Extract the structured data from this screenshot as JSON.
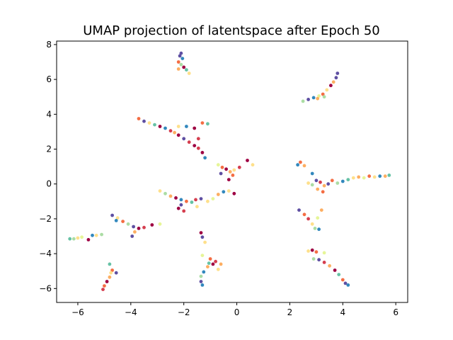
{
  "chart_data": {
    "type": "scatter",
    "title": "UMAP projection of latentspace after Epoch 50",
    "xlabel": "",
    "ylabel": "",
    "xlim": [
      -6.8,
      6.45
    ],
    "ylim": [
      -6.8,
      8.2
    ],
    "xticks": [
      -6,
      -4,
      -2,
      0,
      2,
      4,
      6
    ],
    "xtick_labels": [
      "−6",
      "−4",
      "−2",
      "0",
      "2",
      "4",
      "6"
    ],
    "yticks": [
      -6,
      -4,
      -2,
      0,
      2,
      4,
      6,
      8
    ],
    "ytick_labels": [
      "−6",
      "−4",
      "−2",
      "0",
      "2",
      "4",
      "6",
      "8"
    ],
    "grid": false,
    "legend": "none",
    "colormap": [
      "#9e0142",
      "#d53e4f",
      "#f46d43",
      "#fdae61",
      "#fee08b",
      "#e6f598",
      "#abdda4",
      "#66c2a5",
      "#3288bd",
      "#5e4fa2"
    ],
    "points": [
      {
        "x": -2.1,
        "y": 7.5,
        "c": 9
      },
      {
        "x": -2.15,
        "y": 7.35,
        "c": 9
      },
      {
        "x": -2.05,
        "y": 7.2,
        "c": 8
      },
      {
        "x": -2.2,
        "y": 7.0,
        "c": 2
      },
      {
        "x": -2.1,
        "y": 6.85,
        "c": 6
      },
      {
        "x": -2.0,
        "y": 6.7,
        "c": 0
      },
      {
        "x": -1.9,
        "y": 6.55,
        "c": 7
      },
      {
        "x": -1.8,
        "y": 6.35,
        "c": 4
      },
      {
        "x": -2.2,
        "y": 6.6,
        "c": 3
      },
      {
        "x": 2.5,
        "y": 4.75,
        "c": 6
      },
      {
        "x": 2.7,
        "y": 4.85,
        "c": 9
      },
      {
        "x": 2.9,
        "y": 4.95,
        "c": 8
      },
      {
        "x": 3.1,
        "y": 5.05,
        "c": 5
      },
      {
        "x": 3.25,
        "y": 5.15,
        "c": 2
      },
      {
        "x": 3.4,
        "y": 5.4,
        "c": 4
      },
      {
        "x": 3.55,
        "y": 5.65,
        "c": 0
      },
      {
        "x": 3.65,
        "y": 5.85,
        "c": 3
      },
      {
        "x": 3.75,
        "y": 6.1,
        "c": 9
      },
      {
        "x": 3.8,
        "y": 6.35,
        "c": 9
      },
      {
        "x": 3.3,
        "y": 5.0,
        "c": 6
      },
      {
        "x": 3.05,
        "y": 4.9,
        "c": 3
      },
      {
        "x": -3.7,
        "y": 3.75,
        "c": 2
      },
      {
        "x": -3.5,
        "y": 3.6,
        "c": 9
      },
      {
        "x": -3.3,
        "y": 3.5,
        "c": 4
      },
      {
        "x": -3.1,
        "y": 3.4,
        "c": 7
      },
      {
        "x": -2.9,
        "y": 3.3,
        "c": 0
      },
      {
        "x": -2.7,
        "y": 3.2,
        "c": 8
      },
      {
        "x": -2.5,
        "y": 3.05,
        "c": 1
      },
      {
        "x": -2.35,
        "y": 2.95,
        "c": 3
      },
      {
        "x": -2.2,
        "y": 2.8,
        "c": 0
      },
      {
        "x": -2.0,
        "y": 2.6,
        "c": 9
      },
      {
        "x": -1.8,
        "y": 2.4,
        "c": 1
      },
      {
        "x": -1.6,
        "y": 2.2,
        "c": 0
      },
      {
        "x": -1.45,
        "y": 2.05,
        "c": 1
      },
      {
        "x": -1.3,
        "y": 1.8,
        "c": 0
      },
      {
        "x": -1.2,
        "y": 1.5,
        "c": 8
      },
      {
        "x": -2.2,
        "y": 3.3,
        "c": 4
      },
      {
        "x": -1.9,
        "y": 3.3,
        "c": 8
      },
      {
        "x": -1.6,
        "y": 3.2,
        "c": 0
      },
      {
        "x": -1.3,
        "y": 3.5,
        "c": 2
      },
      {
        "x": -1.1,
        "y": 3.45,
        "c": 7
      },
      {
        "x": -1.45,
        "y": 2.6,
        "c": 1
      },
      {
        "x": -0.7,
        "y": 1.1,
        "c": 5
      },
      {
        "x": -0.55,
        "y": 0.95,
        "c": 2
      },
      {
        "x": -0.4,
        "y": 0.85,
        "c": 0
      },
      {
        "x": -0.25,
        "y": 0.7,
        "c": 3
      },
      {
        "x": -0.1,
        "y": 0.8,
        "c": 4
      },
      {
        "x": 0.1,
        "y": 0.95,
        "c": 1
      },
      {
        "x": 0.4,
        "y": 1.35,
        "c": 0
      },
      {
        "x": 0.6,
        "y": 1.1,
        "c": 4
      },
      {
        "x": -0.6,
        "y": 0.6,
        "c": 9
      },
      {
        "x": -0.3,
        "y": 0.25,
        "c": 0
      },
      {
        "x": -0.15,
        "y": 0.5,
        "c": 2
      },
      {
        "x": -2.9,
        "y": -0.4,
        "c": 4
      },
      {
        "x": -2.7,
        "y": -0.55,
        "c": 6
      },
      {
        "x": -2.5,
        "y": -0.7,
        "c": 3
      },
      {
        "x": -2.3,
        "y": -0.8,
        "c": 0
      },
      {
        "x": -2.1,
        "y": -0.9,
        "c": 8
      },
      {
        "x": -1.9,
        "y": -1.0,
        "c": 2
      },
      {
        "x": -1.7,
        "y": -1.05,
        "c": 7
      },
      {
        "x": -1.55,
        "y": -0.9,
        "c": 1
      },
      {
        "x": -1.35,
        "y": -0.85,
        "c": 9
      },
      {
        "x": -1.1,
        "y": -1.0,
        "c": 4
      },
      {
        "x": -0.9,
        "y": -0.85,
        "c": 5
      },
      {
        "x": -0.7,
        "y": -0.6,
        "c": 3
      },
      {
        "x": -0.5,
        "y": -0.45,
        "c": 8
      },
      {
        "x": -0.3,
        "y": -0.4,
        "c": 4
      },
      {
        "x": -0.1,
        "y": -0.55,
        "c": 0
      },
      {
        "x": -2.2,
        "y": -1.4,
        "c": 0
      },
      {
        "x": -2.0,
        "y": -1.55,
        "c": 1
      },
      {
        "x": -2.1,
        "y": -1.2,
        "c": 9
      },
      {
        "x": -1.5,
        "y": -1.3,
        "c": 4
      },
      {
        "x": -4.7,
        "y": -1.8,
        "c": 9
      },
      {
        "x": -4.5,
        "y": -1.95,
        "c": 4
      },
      {
        "x": -4.3,
        "y": -2.15,
        "c": 2
      },
      {
        "x": -4.1,
        "y": -2.3,
        "c": 6
      },
      {
        "x": -3.9,
        "y": -2.45,
        "c": 9
      },
      {
        "x": -3.7,
        "y": -2.55,
        "c": 0
      },
      {
        "x": -3.5,
        "y": -2.5,
        "c": 1
      },
      {
        "x": -3.2,
        "y": -2.35,
        "c": 0
      },
      {
        "x": -2.9,
        "y": -2.3,
        "c": 5
      },
      {
        "x": -3.95,
        "y": -3.0,
        "c": 9
      },
      {
        "x": -3.85,
        "y": -2.75,
        "c": 3
      },
      {
        "x": -4.55,
        "y": -2.1,
        "c": 8
      },
      {
        "x": -6.3,
        "y": -3.15,
        "c": 7
      },
      {
        "x": -6.15,
        "y": -3.15,
        "c": 6
      },
      {
        "x": -6.0,
        "y": -3.1,
        "c": 4
      },
      {
        "x": -5.85,
        "y": -3.05,
        "c": 5
      },
      {
        "x": -5.6,
        "y": -3.2,
        "c": 0
      },
      {
        "x": -5.45,
        "y": -2.95,
        "c": 8
      },
      {
        "x": -5.3,
        "y": -2.95,
        "c": 4
      },
      {
        "x": -5.1,
        "y": -2.9,
        "c": 6
      },
      {
        "x": -4.8,
        "y": -4.6,
        "c": 7
      },
      {
        "x": -4.7,
        "y": -4.95,
        "c": 2
      },
      {
        "x": -4.55,
        "y": -5.1,
        "c": 9
      },
      {
        "x": -4.8,
        "y": -5.35,
        "c": 3
      },
      {
        "x": -4.9,
        "y": -5.6,
        "c": 0
      },
      {
        "x": -5.0,
        "y": -5.85,
        "c": 2
      },
      {
        "x": -5.05,
        "y": -6.05,
        "c": 1
      },
      {
        "x": -4.75,
        "y": -5.1,
        "c": 4
      },
      {
        "x": -1.35,
        "y": -2.8,
        "c": 0
      },
      {
        "x": -1.3,
        "y": -3.05,
        "c": 9
      },
      {
        "x": -1.2,
        "y": -3.35,
        "c": 4
      },
      {
        "x": -1.3,
        "y": -4.1,
        "c": 5
      },
      {
        "x": -1.0,
        "y": -4.3,
        "c": 2
      },
      {
        "x": -0.8,
        "y": -4.45,
        "c": 1
      },
      {
        "x": -0.6,
        "y": -4.6,
        "c": 3
      },
      {
        "x": -0.7,
        "y": -4.9,
        "c": 4
      },
      {
        "x": -0.9,
        "y": -4.6,
        "c": 0
      },
      {
        "x": -1.1,
        "y": -4.75,
        "c": 3
      },
      {
        "x": -1.25,
        "y": -5.05,
        "c": 8
      },
      {
        "x": -1.35,
        "y": -5.3,
        "c": 6
      },
      {
        "x": -1.35,
        "y": -5.6,
        "c": 9
      },
      {
        "x": -1.3,
        "y": -5.8,
        "c": 8
      },
      {
        "x": -1.05,
        "y": -4.55,
        "c": 7
      },
      {
        "x": 2.4,
        "y": 1.25,
        "c": 2
      },
      {
        "x": 2.3,
        "y": 1.1,
        "c": 8
      },
      {
        "x": 2.55,
        "y": 1.05,
        "c": 3
      },
      {
        "x": 2.7,
        "y": 0.05,
        "c": 4
      },
      {
        "x": 2.85,
        "y": -0.05,
        "c": 6
      },
      {
        "x": 3.0,
        "y": 0.2,
        "c": 9
      },
      {
        "x": 3.15,
        "y": 0.1,
        "c": 1
      },
      {
        "x": 3.3,
        "y": -0.1,
        "c": 3
      },
      {
        "x": 3.45,
        "y": 0.0,
        "c": 9
      },
      {
        "x": 3.6,
        "y": 0.2,
        "c": 2
      },
      {
        "x": 3.8,
        "y": 0.05,
        "c": 6
      },
      {
        "x": 4.0,
        "y": 0.15,
        "c": 8
      },
      {
        "x": 4.2,
        "y": 0.25,
        "c": 7
      },
      {
        "x": 4.4,
        "y": 0.35,
        "c": 4
      },
      {
        "x": 4.6,
        "y": 0.4,
        "c": 3
      },
      {
        "x": 4.8,
        "y": 0.35,
        "c": 5
      },
      {
        "x": 5.0,
        "y": 0.45,
        "c": 2
      },
      {
        "x": 5.2,
        "y": 0.4,
        "c": 4
      },
      {
        "x": 5.4,
        "y": 0.45,
        "c": 8
      },
      {
        "x": 5.6,
        "y": 0.45,
        "c": 3
      },
      {
        "x": 5.75,
        "y": 0.5,
        "c": 7
      },
      {
        "x": 3.25,
        "y": -0.45,
        "c": 2
      },
      {
        "x": 3.05,
        "y": -0.3,
        "c": 3
      },
      {
        "x": 2.85,
        "y": 0.6,
        "c": 8
      },
      {
        "x": 2.35,
        "y": -1.5,
        "c": 9
      },
      {
        "x": 2.55,
        "y": -1.75,
        "c": 2
      },
      {
        "x": 2.7,
        "y": -2.0,
        "c": 1
      },
      {
        "x": 2.85,
        "y": -2.3,
        "c": 4
      },
      {
        "x": 2.95,
        "y": -2.55,
        "c": 6
      },
      {
        "x": 3.1,
        "y": -2.6,
        "c": 8
      },
      {
        "x": 3.2,
        "y": -1.5,
        "c": 3
      },
      {
        "x": 3.05,
        "y": -1.95,
        "c": 5
      },
      {
        "x": 2.7,
        "y": -3.85,
        "c": 4
      },
      {
        "x": 2.85,
        "y": -3.8,
        "c": 0
      },
      {
        "x": 3.0,
        "y": -3.9,
        "c": 2
      },
      {
        "x": 2.9,
        "y": -4.3,
        "c": 6
      },
      {
        "x": 3.1,
        "y": -4.35,
        "c": 9
      },
      {
        "x": 3.3,
        "y": -4.5,
        "c": 1
      },
      {
        "x": 3.5,
        "y": -4.7,
        "c": 3
      },
      {
        "x": 3.7,
        "y": -4.95,
        "c": 0
      },
      {
        "x": 3.85,
        "y": -5.2,
        "c": 7
      },
      {
        "x": 4.0,
        "y": -5.5,
        "c": 2
      },
      {
        "x": 4.1,
        "y": -5.7,
        "c": 9
      },
      {
        "x": 4.2,
        "y": -5.8,
        "c": 8
      },
      {
        "x": 3.3,
        "y": -3.95,
        "c": 5
      }
    ]
  }
}
